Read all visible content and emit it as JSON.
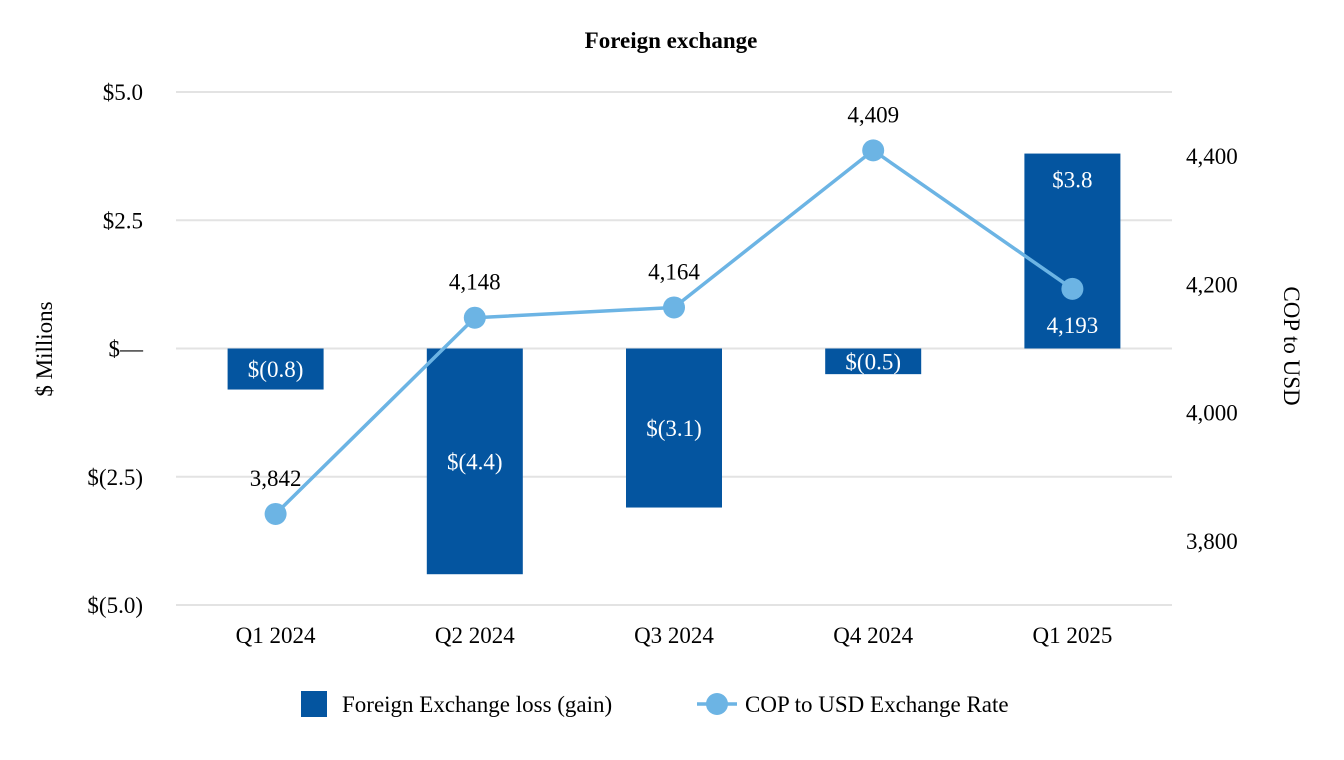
{
  "chart_data": {
    "type": "bar+line",
    "title": "Foreign exchange",
    "categories": [
      "Q1 2024",
      "Q2 2024",
      "Q3 2024",
      "Q4 2024",
      "Q1 2025"
    ],
    "series": [
      {
        "name": "Foreign Exchange loss (gain)",
        "type": "bar",
        "axis": "left",
        "color": "#0455a0",
        "values": [
          -0.8,
          -4.4,
          -3.1,
          -0.5,
          3.8
        ],
        "labels": [
          "$(0.8)",
          "$(4.4)",
          "$(3.1)",
          "$(0.5)",
          "$3.8"
        ]
      },
      {
        "name": "COP to USD Exchange Rate",
        "type": "line",
        "axis": "right",
        "color": "#6cb4e4",
        "values": [
          3842,
          4148,
          4164,
          4409,
          4193
        ],
        "labels": [
          "3,842",
          "4,148",
          "4,164",
          "4,409",
          "4,193"
        ]
      }
    ],
    "left_axis": {
      "label": "$ Millions",
      "range": [
        -5.0,
        5.0
      ],
      "ticks": [
        5.0,
        2.5,
        0,
        -2.5,
        -5.0
      ],
      "tick_labels": [
        "$5.0",
        "$2.5",
        "$—",
        "$(2.5)",
        "$(5.0)"
      ]
    },
    "right_axis": {
      "label": "COP to USD",
      "range": [
        3700,
        4500
      ],
      "ticks": [
        4400,
        4200,
        4000,
        3800
      ],
      "tick_labels": [
        "4,400",
        "4,200",
        "4,000",
        "3,800"
      ]
    },
    "grid": true,
    "legend_position": "bottom"
  }
}
